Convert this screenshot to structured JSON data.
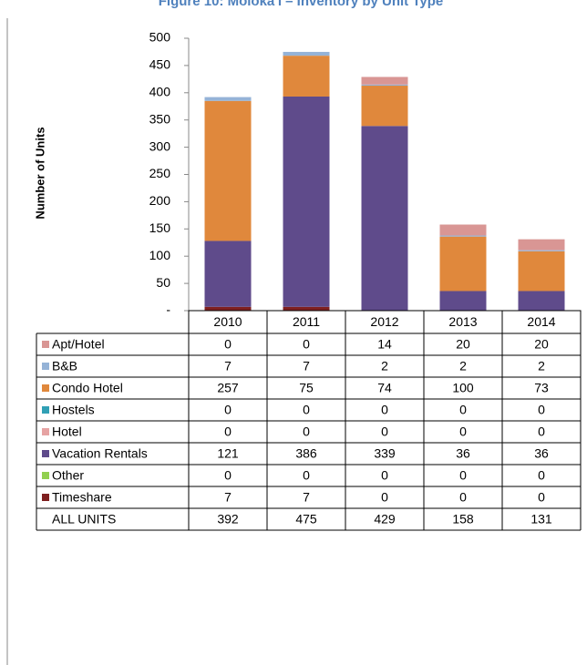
{
  "chart_data": {
    "type": "bar",
    "stacked": true,
    "title": "Figure 10: Moloka'i – Inventory by Unit Type",
    "y_label": "Number of Units",
    "categories": [
      "2010",
      "2011",
      "2012",
      "2013",
      "2014"
    ],
    "series": [
      {
        "name": "Apt/Hotel",
        "color": "#d99694",
        "values": [
          0,
          0,
          14,
          20,
          20
        ]
      },
      {
        "name": "B&B",
        "color": "#95b3d7",
        "values": [
          7,
          7,
          2,
          2,
          2
        ]
      },
      {
        "name": "Condo Hotel",
        "color": "#e0883c",
        "values": [
          257,
          75,
          74,
          100,
          73
        ]
      },
      {
        "name": "Hostels",
        "color": "#31a0b5",
        "values": [
          0,
          0,
          0,
          0,
          0
        ]
      },
      {
        "name": "Hotel",
        "color": "#e6a3a3",
        "values": [
          0,
          0,
          0,
          0,
          0
        ]
      },
      {
        "name": "Vacation Rentals",
        "color": "#5f4b8b",
        "values": [
          121,
          386,
          339,
          36,
          36
        ]
      },
      {
        "name": "Other",
        "color": "#92d050",
        "values": [
          0,
          0,
          0,
          0,
          0
        ]
      },
      {
        "name": "Timeshare",
        "color": "#7f2020",
        "values": [
          7,
          7,
          0,
          0,
          0
        ]
      }
    ],
    "total_label": "ALL UNITS",
    "totals": [
      392,
      475,
      429,
      158,
      131
    ],
    "ylim": [
      0,
      500
    ],
    "yticks": [
      {
        "value": 0,
        "label": "-"
      },
      50,
      100,
      150,
      200,
      250,
      300,
      350,
      400,
      450,
      500
    ],
    "grid": false
  }
}
